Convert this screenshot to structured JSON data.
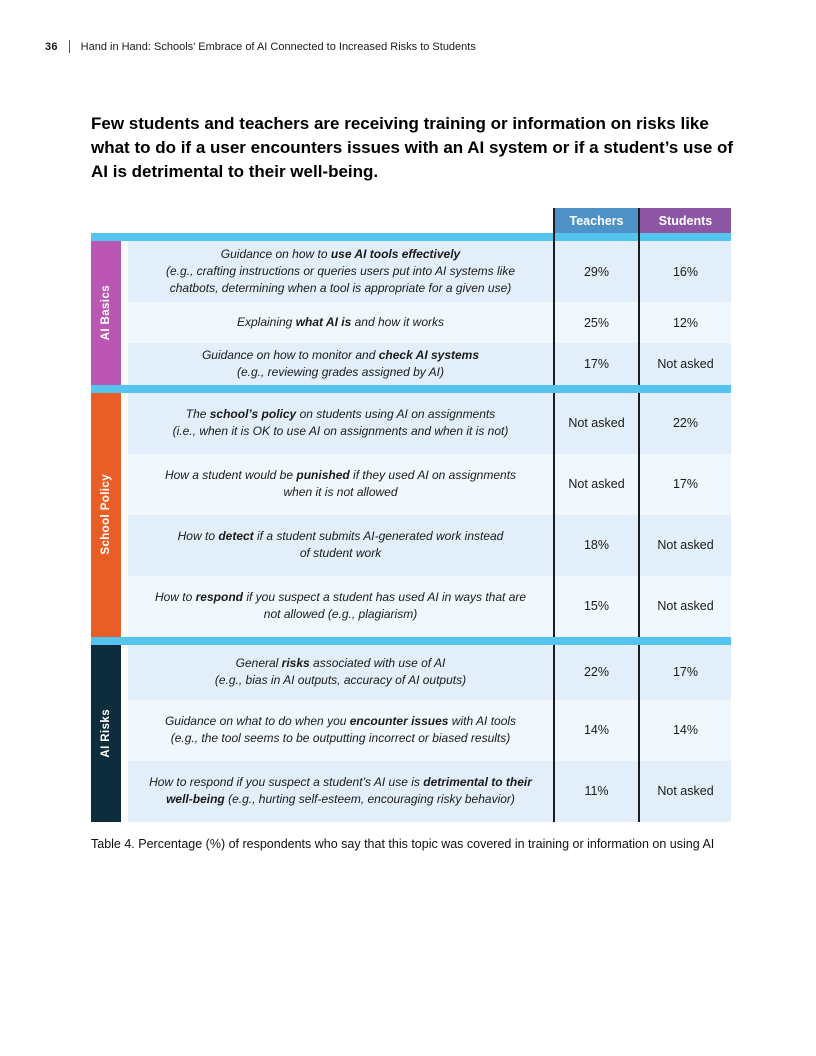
{
  "page": {
    "page_number": "36",
    "header_title": "Hand in Hand: Schools’ Embrace of AI Connected to Increased Risks to Students",
    "heading": "Few students and teachers are receiving training or information on risks like what to do if a user encounters issues with an AI system or if a student’s use of AI is detrimental to their well-being.",
    "caption": "Table 4. Percentage (%) of respondents who say that this topic was covered in training or information on using AI"
  },
  "colors": {
    "teachers_header": "#4f92c8",
    "students_header": "#8c56a5",
    "stripe": "#54c3ee",
    "ai_basics": "#bb56b2",
    "school_policy": "#e95e27",
    "ai_risks": "#0d2d3d",
    "row_blue": "#e2effa",
    "row_light": "#f1f8fd"
  },
  "table": {
    "columns": [
      "Teachers",
      "Students"
    ],
    "groups": [
      {
        "id": "ai-basics",
        "label": "AI Basics",
        "color_key": "ai_basics",
        "rows": [
          {
            "description": [
              {
                "text": "Guidance on how to ",
                "bold": false
              },
              {
                "text": "use AI tools effectively",
                "bold": true
              },
              {
                "text": "\n(e.g., crafting instructions or queries users put into AI systems like\nchatbots, determining when a tool is appropriate for a given use)",
                "bold": false
              }
            ],
            "teachers": "29%",
            "students": "16%",
            "min_h": 61,
            "shade": "blue"
          },
          {
            "description": [
              {
                "text": "Explaining ",
                "bold": false
              },
              {
                "text": "what AI is",
                "bold": true
              },
              {
                "text": " and how it works",
                "bold": false
              }
            ],
            "teachers": "25%",
            "students": "12%",
            "min_h": 41,
            "shade": "light"
          },
          {
            "description": [
              {
                "text": "Guidance on how to monitor and ",
                "bold": false
              },
              {
                "text": "check AI systems",
                "bold": true
              },
              {
                "text": "\n(e.g., reviewing grades assigned by AI)",
                "bold": false
              }
            ],
            "teachers": "17%",
            "students": "Not asked",
            "min_h": 41,
            "shade": "blue"
          }
        ]
      },
      {
        "id": "school-policy",
        "label": "School Policy",
        "color_key": "school_policy",
        "rows": [
          {
            "description": [
              {
                "text": "The ",
                "bold": false
              },
              {
                "text": "school’s policy",
                "bold": true
              },
              {
                "text": " on students using AI on assignments\n(i.e., when it is OK to use AI on assignments and when it is not)",
                "bold": false
              }
            ],
            "teachers": "Not asked",
            "students": "22%",
            "min_h": 61,
            "shade": "blue"
          },
          {
            "description": [
              {
                "text": "How a student would be ",
                "bold": false
              },
              {
                "text": "punished",
                "bold": true
              },
              {
                "text": " if they used AI on assignments\nwhen it is not allowed",
                "bold": false
              }
            ],
            "teachers": "Not asked",
            "students": "17%",
            "min_h": 61,
            "shade": "light"
          },
          {
            "description": [
              {
                "text": "How to ",
                "bold": false
              },
              {
                "text": "detect",
                "bold": true
              },
              {
                "text": " if a student submits AI-generated work instead\nof student work",
                "bold": false
              }
            ],
            "teachers": "18%",
            "students": "Not asked",
            "min_h": 61,
            "shade": "blue"
          },
          {
            "description": [
              {
                "text": "How to ",
                "bold": false
              },
              {
                "text": "respond",
                "bold": true
              },
              {
                "text": " if you suspect a student has used AI in ways that are\nnot allowed (e.g., plagiarism)",
                "bold": false
              }
            ],
            "teachers": "15%",
            "students": "Not asked",
            "min_h": 61,
            "shade": "light"
          }
        ]
      },
      {
        "id": "ai-risks",
        "label": "AI Risks",
        "color_key": "ai_risks",
        "rows": [
          {
            "description": [
              {
                "text": "General ",
                "bold": false
              },
              {
                "text": "risks",
                "bold": true
              },
              {
                "text": " associated with use of AI\n(e.g., bias in AI outputs, accuracy of AI outputs)",
                "bold": false
              }
            ],
            "teachers": "22%",
            "students": "17%",
            "min_h": 55,
            "shade": "blue"
          },
          {
            "description": [
              {
                "text": "Guidance on what to do when you ",
                "bold": false
              },
              {
                "text": "encounter issues",
                "bold": true
              },
              {
                "text": " with AI tools\n(e.g., the tool seems to be outputting incorrect or biased results)",
                "bold": false
              }
            ],
            "teachers": "14%",
            "students": "14%",
            "min_h": 61,
            "shade": "light"
          },
          {
            "description": [
              {
                "text": "How to respond if you suspect a student’s AI use is ",
                "bold": false
              },
              {
                "text": "detrimental to their\nwell-being",
                "bold": true
              },
              {
                "text": " (e.g., hurting self-esteem, encouraging risky behavior)",
                "bold": false
              }
            ],
            "teachers": "11%",
            "students": "Not asked",
            "min_h": 61,
            "shade": "blue"
          }
        ]
      }
    ]
  }
}
